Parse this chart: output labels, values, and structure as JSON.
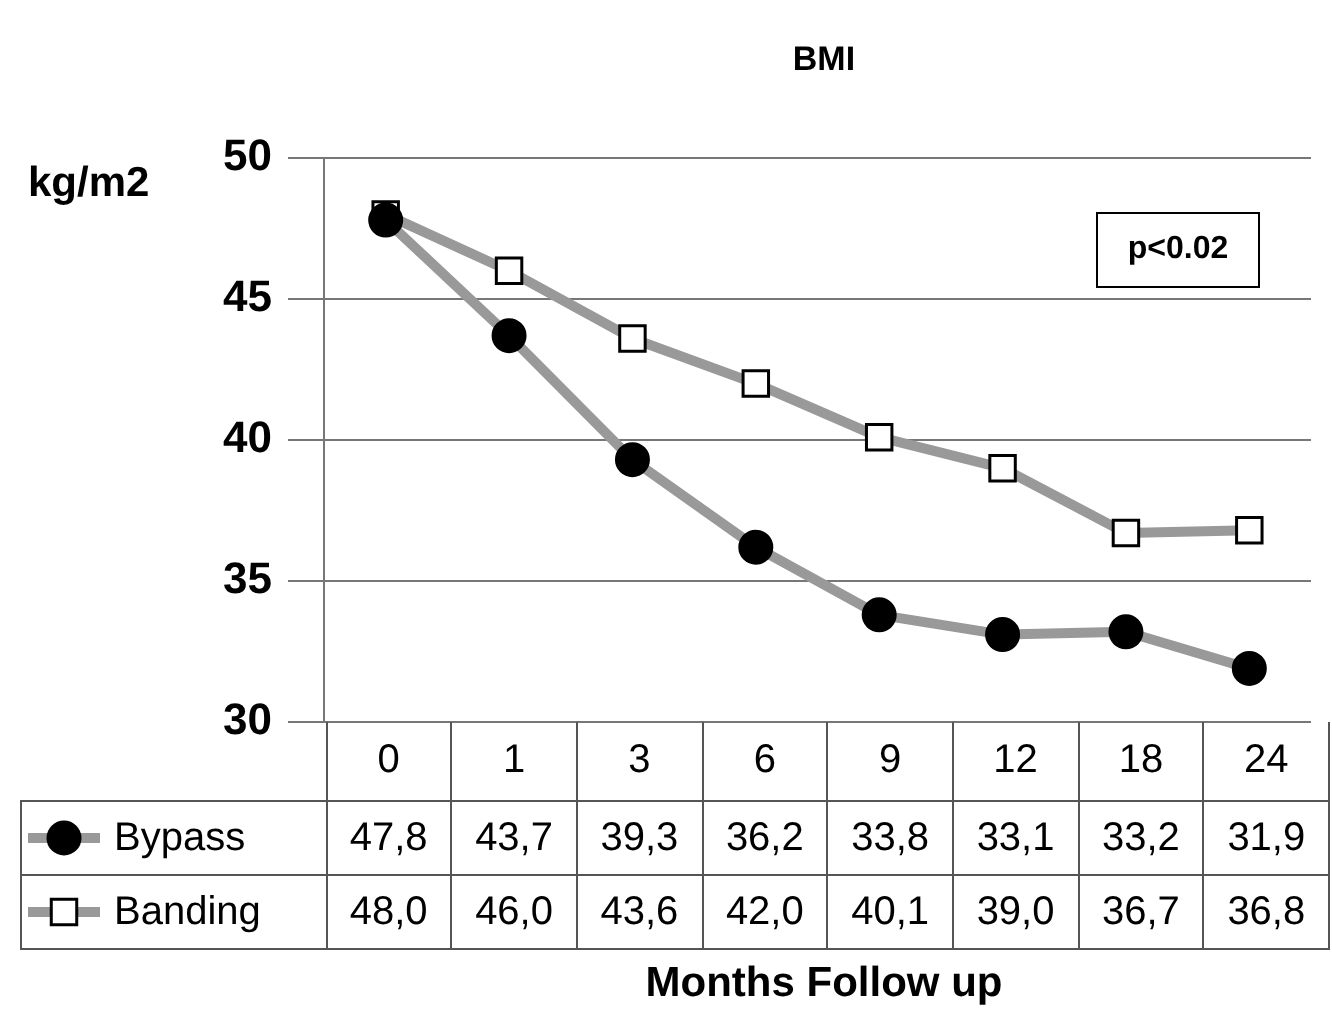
{
  "chart_data": {
    "type": "line",
    "title": "BMI",
    "xlabel": "Months Follow up",
    "ylabel": "kg/m2",
    "categories": [
      "0",
      "1",
      "3",
      "6",
      "9",
      "12",
      "18",
      "24"
    ],
    "series": [
      {
        "name": "Bypass",
        "color": "#999999",
        "marker": "circle",
        "values": [
          47.8,
          43.7,
          39.3,
          36.2,
          33.8,
          33.1,
          33.2,
          31.9
        ],
        "value_labels": [
          "47,8",
          "43,7",
          "39,3",
          "36,2",
          "33,8",
          "33,1",
          "33,2",
          "31,9"
        ]
      },
      {
        "name": "Banding",
        "color": "#999999",
        "marker": "square",
        "values": [
          48.0,
          46.0,
          43.6,
          42.0,
          40.1,
          39.0,
          36.7,
          36.8
        ],
        "value_labels": [
          "48,0",
          "46,0",
          "43,6",
          "42,0",
          "40,1",
          "39,0",
          "36,7",
          "36,8"
        ]
      }
    ],
    "ylim": [
      30,
      50
    ],
    "yticks": [
      30,
      35,
      40,
      45,
      50
    ],
    "grid": "y",
    "legend": "bottom",
    "annotations": [
      "p<0.02"
    ]
  }
}
